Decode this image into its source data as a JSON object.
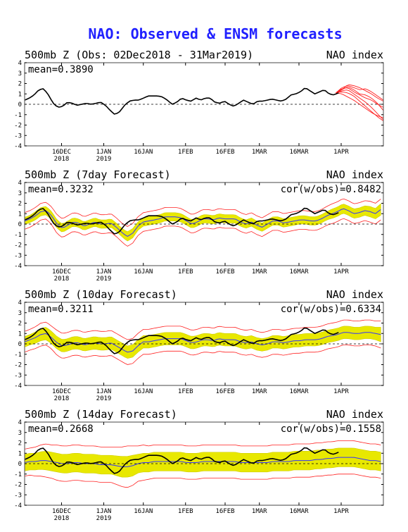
{
  "title": "NAO: Observed & ENSM forecasts",
  "colors": {
    "title": "#2020ff",
    "observed": "#000000",
    "ens_mean": "#3333ff",
    "ens_spread": "#cfcf00",
    "ens_spread_fill": "#e8e800",
    "ens_extreme": "#ff2020"
  },
  "chart_data": [
    {
      "type": "line",
      "title_left": "500mb Z (Obs: 02Dec2018 - 31Mar2019)",
      "title_right": "NAO index",
      "mean_label": "mean=0.3890",
      "cor_label": "",
      "ylim": [
        -4,
        4
      ],
      "yticks": [
        "4",
        "3",
        "2",
        "1",
        "0",
        "-1",
        "-2",
        "-3",
        "-4"
      ],
      "xticks": [
        {
          "top": "16DEC",
          "bottom": "2018"
        },
        {
          "top": "1JAN",
          "bottom": "2019"
        },
        {
          "top": "16JAN",
          "bottom": ""
        },
        {
          "top": "1FEB",
          "bottom": ""
        },
        {
          "top": "16FEB",
          "bottom": ""
        },
        {
          "top": "1MAR",
          "bottom": ""
        },
        {
          "top": "16MAR",
          "bottom": ""
        },
        {
          "top": "1APR",
          "bottom": ""
        }
      ],
      "observed": [
        0.4,
        0.6,
        0.9,
        1.4,
        1.5,
        0.9,
        0.1,
        -0.3,
        -0.2,
        0.2,
        0.1,
        -0.1,
        0.0,
        0.1,
        0.0,
        0.1,
        0.2,
        -0.1,
        -0.6,
        -1.0,
        -0.7,
        -0.1,
        0.3,
        0.4,
        0.4,
        0.6,
        0.8,
        0.8,
        0.8,
        0.7,
        0.4,
        0.0,
        0.2,
        0.6,
        0.4,
        0.3,
        0.6,
        0.4,
        0.6,
        0.6,
        0.2,
        0.1,
        0.3,
        0.0,
        -0.2,
        0.1,
        0.4,
        0.2,
        0.0,
        0.3,
        0.3,
        0.4,
        0.5,
        0.4,
        0.3,
        0.5,
        0.9,
        1.0,
        1.2,
        1.6,
        1.3,
        1.0,
        1.2,
        1.4,
        1.0,
        0.9,
        1.1
      ],
      "forecast_members": [
        [
          1.1,
          1.4,
          1.9,
          1.8,
          1.6,
          1.3,
          1.0,
          0.6,
          0.3
        ],
        [
          1.1,
          1.5,
          1.6,
          1.2,
          0.9,
          0.6,
          0.4,
          0.0,
          -0.3
        ],
        [
          1.1,
          1.2,
          1.1,
          0.8,
          0.3,
          -0.2,
          -0.7,
          -1.2,
          -1.6
        ],
        [
          1.1,
          1.3,
          1.4,
          1.0,
          0.6,
          0.2,
          -0.3,
          -0.9,
          -1.5
        ],
        [
          1.1,
          1.6,
          1.8,
          1.6,
          1.4,
          1.5,
          1.2,
          0.8,
          0.4
        ],
        [
          1.1,
          1.0,
          0.7,
          0.4,
          0.0,
          -0.4,
          -0.8,
          -1.1,
          -1.3
        ],
        [
          1.1,
          1.4,
          1.7,
          1.4,
          1.0,
          0.9,
          0.6,
          0.1,
          -0.6
        ]
      ]
    },
    {
      "type": "line",
      "title_left": "500mb Z (7day Forecast)",
      "title_right": "NAO index",
      "mean_label": "mean=0.3232",
      "cor_label": "cor(w/obs)=0.8482",
      "ylim": [
        -4,
        4
      ],
      "yticks": [
        "4",
        "3",
        "2",
        "1",
        "0",
        "-1",
        "-2",
        "-3",
        "-4"
      ],
      "xticks": [
        {
          "top": "16DEC",
          "bottom": "2018"
        },
        {
          "top": "1JAN",
          "bottom": "2019"
        },
        {
          "top": "16JAN",
          "bottom": ""
        },
        {
          "top": "1FEB",
          "bottom": ""
        },
        {
          "top": "16FEB",
          "bottom": ""
        },
        {
          "top": "1MAR",
          "bottom": ""
        },
        {
          "top": "16MAR",
          "bottom": ""
        },
        {
          "top": "1APR",
          "bottom": ""
        }
      ],
      "observed": [
        0.4,
        0.6,
        0.9,
        1.4,
        1.5,
        0.9,
        0.1,
        -0.3,
        -0.2,
        0.2,
        0.1,
        -0.1,
        0.0,
        0.1,
        0.0,
        0.1,
        0.2,
        -0.1,
        -0.6,
        -1.0,
        -0.7,
        -0.1,
        0.3,
        0.4,
        0.4,
        0.6,
        0.8,
        0.8,
        0.8,
        0.7,
        0.4,
        0.0,
        0.2,
        0.6,
        0.4,
        0.3,
        0.6,
        0.4,
        0.6,
        0.6,
        0.2,
        0.1,
        0.3,
        0.0,
        -0.2,
        0.1,
        0.4,
        0.2,
        0.0,
        0.3,
        0.3,
        0.4,
        0.5,
        0.4,
        0.3,
        0.5,
        0.9,
        1.0,
        1.2,
        1.6,
        1.3,
        1.0,
        1.2,
        1.4,
        1.0,
        0.9,
        1.1
      ],
      "ens_mean": [
        0.3,
        0.5,
        0.8,
        1.2,
        1.3,
        0.8,
        0.0,
        -0.4,
        -0.1,
        0.2,
        0.1,
        -0.2,
        0.0,
        0.2,
        0.0,
        0.0,
        0.1,
        -0.3,
        -0.8,
        -1.2,
        -0.9,
        -0.2,
        0.2,
        0.3,
        0.4,
        0.5,
        0.7,
        0.7,
        0.7,
        0.6,
        0.3,
        0.0,
        0.2,
        0.5,
        0.5,
        0.4,
        0.6,
        0.5,
        0.5,
        0.5,
        0.2,
        0.0,
        0.2,
        -0.1,
        -0.3,
        0.0,
        0.3,
        0.3,
        0.1,
        0.2,
        0.3,
        0.4,
        0.4,
        0.3,
        0.3,
        0.5,
        0.8,
        1.0,
        1.2,
        1.5,
        1.3,
        1.0,
        1.1,
        1.3,
        1.2,
        1.0,
        1.4
      ],
      "spread": [
        0.35,
        0.35,
        0.4,
        0.4,
        0.4,
        0.4,
        0.4,
        0.4,
        0.4,
        0.4,
        0.4,
        0.4,
        0.4,
        0.4,
        0.4,
        0.4,
        0.4,
        0.4,
        0.4,
        0.45,
        0.45,
        0.4,
        0.4,
        0.4,
        0.4,
        0.4,
        0.4,
        0.4,
        0.4,
        0.4,
        0.4,
        0.4,
        0.4,
        0.4,
        0.4,
        0.4,
        0.4,
        0.4,
        0.4,
        0.4,
        0.4,
        0.4,
        0.4,
        0.4,
        0.4,
        0.4,
        0.4,
        0.4,
        0.4,
        0.4,
        0.4,
        0.4,
        0.4,
        0.4,
        0.4,
        0.4,
        0.4,
        0.45,
        0.45,
        0.45,
        0.45,
        0.45,
        0.45,
        0.45,
        0.5,
        0.5,
        0.55
      ],
      "extreme": [
        0.8,
        0.8,
        0.8,
        0.8,
        0.8,
        0.85,
        0.9,
        0.9,
        0.9,
        0.9,
        0.9,
        0.9,
        0.9,
        0.9,
        0.9,
        0.9,
        0.9,
        0.9,
        0.9,
        0.95,
        0.95,
        0.9,
        0.9,
        0.9,
        0.9,
        0.9,
        0.9,
        0.9,
        0.9,
        0.9,
        0.9,
        0.9,
        0.9,
        0.9,
        0.9,
        0.9,
        0.9,
        0.9,
        0.9,
        0.9,
        0.9,
        0.9,
        0.9,
        0.9,
        0.9,
        0.9,
        0.9,
        0.9,
        0.9,
        0.9,
        0.9,
        0.9,
        0.9,
        0.9,
        0.9,
        0.9,
        0.9,
        0.95,
        0.95,
        0.95,
        0.95,
        0.95,
        0.95,
        0.95,
        1.0,
        1.0,
        1.0
      ]
    },
    {
      "type": "line",
      "title_left": "500mb Z (10day Forecast)",
      "title_right": "NAO index",
      "mean_label": "mean=0.3211",
      "cor_label": "cor(w/obs)=0.6334",
      "ylim": [
        -4,
        4
      ],
      "yticks": [
        "4",
        "3",
        "2",
        "1",
        "0",
        "-1",
        "-2",
        "-3",
        "-4"
      ],
      "xticks": [
        {
          "top": "16DEC",
          "bottom": "2018"
        },
        {
          "top": "1JAN",
          "bottom": "2019"
        },
        {
          "top": "16JAN",
          "bottom": ""
        },
        {
          "top": "1FEB",
          "bottom": ""
        },
        {
          "top": "16FEB",
          "bottom": ""
        },
        {
          "top": "1MAR",
          "bottom": ""
        },
        {
          "top": "16MAR",
          "bottom": ""
        },
        {
          "top": "1APR",
          "bottom": ""
        }
      ],
      "observed": [
        0.4,
        0.6,
        0.9,
        1.4,
        1.5,
        0.9,
        0.1,
        -0.3,
        -0.2,
        0.2,
        0.1,
        -0.1,
        0.0,
        0.1,
        0.0,
        0.1,
        0.2,
        -0.1,
        -0.6,
        -1.0,
        -0.7,
        -0.1,
        0.3,
        0.4,
        0.4,
        0.6,
        0.8,
        0.8,
        0.8,
        0.7,
        0.4,
        0.0,
        0.2,
        0.6,
        0.4,
        0.3,
        0.6,
        0.4,
        0.6,
        0.6,
        0.2,
        0.1,
        0.3,
        0.0,
        -0.2,
        0.1,
        0.4,
        0.2,
        0.0,
        0.3,
        0.3,
        0.4,
        0.5,
        0.4,
        0.3,
        0.5,
        0.9,
        1.0,
        1.2,
        1.6,
        1.3,
        1.0,
        1.2,
        1.4,
        1.0,
        0.9,
        1.1
      ],
      "ens_mean": [
        0.2,
        0.4,
        0.6,
        0.9,
        1.0,
        0.6,
        0.1,
        -0.2,
        -0.1,
        0.1,
        0.1,
        -0.1,
        0.0,
        0.1,
        0.0,
        0.0,
        0.1,
        -0.2,
        -0.5,
        -0.8,
        -0.7,
        -0.2,
        0.2,
        0.2,
        0.3,
        0.4,
        0.5,
        0.5,
        0.5,
        0.5,
        0.3,
        0.1,
        0.2,
        0.4,
        0.4,
        0.3,
        0.5,
        0.4,
        0.4,
        0.4,
        0.2,
        0.1,
        0.2,
        0.0,
        -0.1,
        0.0,
        0.2,
        0.2,
        0.1,
        0.2,
        0.3,
        0.3,
        0.4,
        0.4,
        0.4,
        0.5,
        0.7,
        0.8,
        0.9,
        1.1,
        1.1,
        1.0,
        1.0,
        1.1,
        1.1,
        1.0,
        0.9
      ],
      "spread": [
        0.5,
        0.5,
        0.55,
        0.6,
        0.6,
        0.6,
        0.6,
        0.6,
        0.6,
        0.6,
        0.6,
        0.6,
        0.6,
        0.6,
        0.6,
        0.6,
        0.6,
        0.6,
        0.6,
        0.6,
        0.6,
        0.6,
        0.6,
        0.6,
        0.6,
        0.6,
        0.6,
        0.6,
        0.6,
        0.6,
        0.6,
        0.6,
        0.6,
        0.6,
        0.6,
        0.6,
        0.6,
        0.6,
        0.6,
        0.6,
        0.6,
        0.6,
        0.6,
        0.6,
        0.6,
        0.6,
        0.6,
        0.6,
        0.6,
        0.6,
        0.6,
        0.6,
        0.6,
        0.6,
        0.6,
        0.6,
        0.6,
        0.6,
        0.6,
        0.6,
        0.6,
        0.6,
        0.6,
        0.6,
        0.6,
        0.6,
        0.7
      ],
      "extreme": [
        1.0,
        1.0,
        1.05,
        1.1,
        1.1,
        1.1,
        1.2,
        1.2,
        1.2,
        1.2,
        1.2,
        1.2,
        1.2,
        1.2,
        1.2,
        1.2,
        1.2,
        1.2,
        1.2,
        1.2,
        1.2,
        1.2,
        1.2,
        1.2,
        1.2,
        1.2,
        1.2,
        1.2,
        1.2,
        1.2,
        1.2,
        1.2,
        1.2,
        1.2,
        1.2,
        1.2,
        1.2,
        1.2,
        1.2,
        1.2,
        1.2,
        1.2,
        1.2,
        1.2,
        1.2,
        1.2,
        1.2,
        1.2,
        1.2,
        1.2,
        1.2,
        1.2,
        1.2,
        1.2,
        1.2,
        1.2,
        1.2,
        1.2,
        1.2,
        1.2,
        1.2,
        1.2,
        1.2,
        1.2,
        1.2,
        1.2,
        1.3
      ]
    },
    {
      "type": "line",
      "title_left": "500mb Z (14day Forecast)",
      "title_right": "NAO index",
      "mean_label": "mean=0.2668",
      "cor_label": "cor(w/obs)=0.1558",
      "ylim": [
        -4,
        4
      ],
      "yticks": [
        "4",
        "3",
        "2",
        "1",
        "0",
        "-1",
        "-2",
        "-3",
        "-4"
      ],
      "xticks": [
        {
          "top": "16DEC",
          "bottom": "2018"
        },
        {
          "top": "1JAN",
          "bottom": "2019"
        },
        {
          "top": "16JAN",
          "bottom": ""
        },
        {
          "top": "1FEB",
          "bottom": ""
        },
        {
          "top": "16FEB",
          "bottom": ""
        },
        {
          "top": "1MAR",
          "bottom": ""
        },
        {
          "top": "16MAR",
          "bottom": ""
        },
        {
          "top": "1APR",
          "bottom": ""
        }
      ],
      "observed": [
        0.4,
        0.6,
        0.9,
        1.4,
        1.5,
        0.9,
        0.1,
        -0.3,
        -0.2,
        0.2,
        0.1,
        -0.1,
        0.0,
        0.1,
        0.0,
        0.1,
        0.2,
        -0.1,
        -0.6,
        -1.0,
        -0.7,
        -0.1,
        0.3,
        0.4,
        0.4,
        0.6,
        0.8,
        0.8,
        0.8,
        0.7,
        0.4,
        0.0,
        0.2,
        0.6,
        0.4,
        0.3,
        0.6,
        0.4,
        0.6,
        0.6,
        0.2,
        0.1,
        0.3,
        0.0,
        -0.2,
        0.1,
        0.4,
        0.2,
        0.0,
        0.3,
        0.3,
        0.4,
        0.5,
        0.4,
        0.3,
        0.5,
        0.9,
        1.0,
        1.2,
        1.6,
        1.3,
        1.0,
        1.2,
        1.4,
        1.0,
        0.9,
        1.1
      ],
      "ens_mean": [
        0.1,
        0.2,
        0.2,
        0.3,
        0.3,
        0.2,
        0.1,
        0.0,
        0.0,
        0.1,
        0.1,
        0.0,
        0.0,
        0.0,
        -0.1,
        -0.1,
        -0.1,
        -0.2,
        -0.3,
        -0.3,
        -0.2,
        0.0,
        0.1,
        0.1,
        0.2,
        0.2,
        0.2,
        0.2,
        0.2,
        0.2,
        0.1,
        0.1,
        0.1,
        0.2,
        0.2,
        0.2,
        0.2,
        0.2,
        0.2,
        0.2,
        0.1,
        0.1,
        0.1,
        0.1,
        0.1,
        0.1,
        0.2,
        0.2,
        0.2,
        0.2,
        0.3,
        0.3,
        0.3,
        0.3,
        0.4,
        0.4,
        0.5,
        0.5,
        0.6,
        0.6,
        0.6,
        0.6,
        0.5,
        0.4,
        0.3,
        0.3,
        0.2
      ],
      "spread": [
        0.8,
        0.8,
        0.8,
        0.85,
        0.9,
        0.9,
        0.9,
        0.9,
        0.9,
        0.9,
        0.9,
        0.9,
        0.9,
        0.9,
        0.9,
        0.9,
        0.9,
        0.95,
        1.0,
        1.0,
        1.0,
        0.9,
        0.9,
        0.9,
        0.9,
        0.9,
        0.9,
        0.9,
        0.9,
        0.9,
        0.9,
        0.9,
        0.9,
        0.9,
        0.9,
        0.9,
        0.9,
        0.9,
        0.9,
        0.9,
        0.9,
        0.9,
        0.9,
        0.9,
        0.9,
        0.9,
        0.9,
        0.9,
        0.9,
        0.9,
        0.9,
        0.9,
        0.9,
        0.9,
        0.9,
        0.9,
        0.9,
        0.9,
        0.9,
        0.9,
        0.9,
        0.9,
        0.9,
        0.9,
        0.9,
        0.9,
        0.9
      ],
      "extreme": [
        1.3,
        1.3,
        1.4,
        1.5,
        1.6,
        1.6,
        1.7,
        1.7,
        1.7,
        1.7,
        1.7,
        1.7,
        1.7,
        1.7,
        1.7,
        1.7,
        1.7,
        1.8,
        1.9,
        2.0,
        1.9,
        1.7,
        1.7,
        1.6,
        1.6,
        1.6,
        1.6,
        1.6,
        1.6,
        1.6,
        1.6,
        1.6,
        1.6,
        1.6,
        1.6,
        1.6,
        1.6,
        1.6,
        1.6,
        1.6,
        1.6,
        1.6,
        1.6,
        1.6,
        1.6,
        1.6,
        1.6,
        1.6,
        1.6,
        1.6,
        1.6,
        1.6,
        1.6,
        1.6,
        1.6,
        1.6,
        1.6,
        1.6,
        1.6,
        1.6,
        1.6,
        1.6,
        1.6,
        1.6,
        1.6,
        1.6,
        1.6
      ]
    }
  ]
}
